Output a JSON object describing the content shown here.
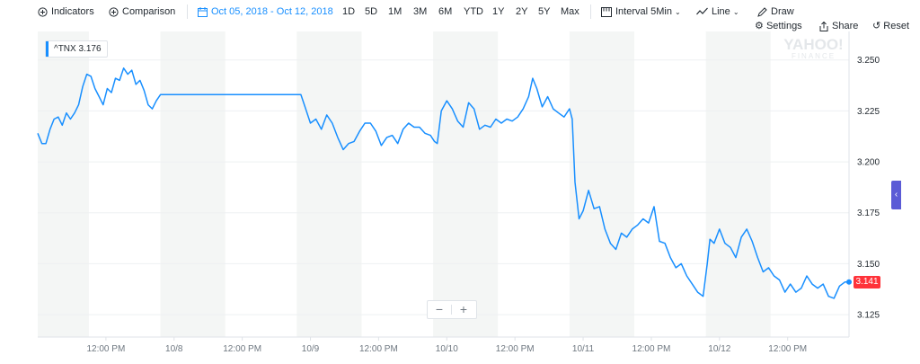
{
  "toolbar": {
    "indicators_label": "Indicators",
    "comparison_label": "Comparison",
    "date_range": "Oct 05, 2018 - Oct 12, 2018",
    "ranges": [
      "1D",
      "5D",
      "1M",
      "3M",
      "6M",
      "YTD",
      "1Y",
      "2Y",
      "5Y",
      "Max"
    ],
    "interval_label": "Interval",
    "interval_value": "5Min",
    "chart_type_label": "Line",
    "draw_label": "Draw",
    "settings_label": "Settings",
    "share_label": "Share",
    "reset_label": "Reset"
  },
  "watermark": {
    "line1": "YAHOO!",
    "line2": "FINANCE"
  },
  "legend": {
    "symbol": "^TNX",
    "value": "3.176"
  },
  "last_price_label": "3.141",
  "zoom": {
    "minus": "−",
    "plus": "+"
  },
  "side_tab_glyph": "‹",
  "colors": {
    "line": "#188fff",
    "shade": "#f4f6f5",
    "last_price_bg": "#ff333a",
    "accent": "#188fff",
    "side_tab": "#5b5bd6"
  },
  "chart_data": {
    "type": "line",
    "title": "",
    "xlabel": "",
    "ylabel": "",
    "ylim": [
      3.114,
      3.264
    ],
    "y_ticks": [
      3.125,
      3.15,
      3.175,
      3.2,
      3.225,
      3.25
    ],
    "y_tick_labels": [
      "3.125",
      "3.150",
      "3.175",
      "3.200",
      "3.225",
      "3.250"
    ],
    "x_range": [
      0,
      5.95
    ],
    "x_ticks": [
      0.5,
      1,
      1.5,
      2,
      2.5,
      3,
      3.5,
      4,
      4.5,
      5,
      5.5
    ],
    "x_tick_labels": [
      "12:00 PM",
      "10/8",
      "12:00 PM",
      "10/9",
      "12:00 PM",
      "10/10",
      "12:00 PM",
      "10/11",
      "12:00 PM",
      "10/12",
      "12:00 PM"
    ],
    "session_shading": [
      [
        0,
        0.375
      ],
      [
        0.9,
        1.375
      ],
      [
        1.9,
        2.375
      ],
      [
        2.9,
        3.375
      ],
      [
        3.9,
        4.375
      ],
      [
        4.9,
        5.375
      ]
    ],
    "series": [
      {
        "name": "^TNX",
        "x": [
          0.0,
          0.03,
          0.06,
          0.09,
          0.12,
          0.15,
          0.18,
          0.21,
          0.24,
          0.27,
          0.3,
          0.33,
          0.36,
          0.39,
          0.42,
          0.45,
          0.48,
          0.51,
          0.54,
          0.57,
          0.6,
          0.63,
          0.66,
          0.69,
          0.72,
          0.75,
          0.78,
          0.81,
          0.84,
          0.87,
          0.9,
          0.93,
          0.96,
          1.0,
          1.3,
          1.6,
          1.93,
          1.96,
          2.0,
          2.04,
          2.08,
          2.12,
          2.16,
          2.2,
          2.24,
          2.28,
          2.32,
          2.36,
          2.4,
          2.44,
          2.48,
          2.52,
          2.56,
          2.6,
          2.64,
          2.68,
          2.72,
          2.76,
          2.8,
          2.84,
          2.88,
          2.91,
          2.93,
          2.96,
          3.0,
          3.04,
          3.08,
          3.12,
          3.16,
          3.2,
          3.24,
          3.28,
          3.32,
          3.36,
          3.4,
          3.44,
          3.48,
          3.52,
          3.56,
          3.6,
          3.63,
          3.66,
          3.7,
          3.74,
          3.78,
          3.82,
          3.86,
          3.9,
          3.92,
          3.94,
          3.97,
          4.0,
          4.04,
          4.08,
          4.12,
          4.16,
          4.2,
          4.24,
          4.28,
          4.32,
          4.36,
          4.4,
          4.44,
          4.48,
          4.52,
          4.56,
          4.6,
          4.64,
          4.68,
          4.72,
          4.76,
          4.8,
          4.84,
          4.88,
          4.91,
          4.93,
          4.96,
          5.0,
          5.04,
          5.08,
          5.12,
          5.16,
          5.2,
          5.24,
          5.28,
          5.32,
          5.36,
          5.4,
          5.44,
          5.48,
          5.52,
          5.56,
          5.6,
          5.64,
          5.68,
          5.72,
          5.76,
          5.8,
          5.84,
          5.88,
          5.92,
          5.95
        ],
        "values": [
          3.214,
          3.209,
          3.209,
          3.216,
          3.221,
          3.222,
          3.218,
          3.224,
          3.221,
          3.224,
          3.228,
          3.237,
          3.243,
          3.242,
          3.236,
          3.232,
          3.228,
          3.236,
          3.234,
          3.241,
          3.24,
          3.246,
          3.243,
          3.245,
          3.238,
          3.24,
          3.235,
          3.228,
          3.226,
          3.23,
          3.233,
          3.233,
          3.233,
          3.233,
          3.233,
          3.233,
          3.233,
          3.227,
          3.219,
          3.221,
          3.216,
          3.223,
          3.219,
          3.212,
          3.206,
          3.209,
          3.21,
          3.215,
          3.219,
          3.219,
          3.215,
          3.208,
          3.212,
          3.213,
          3.209,
          3.216,
          3.219,
          3.217,
          3.217,
          3.214,
          3.213,
          3.21,
          3.209,
          3.225,
          3.23,
          3.226,
          3.22,
          3.217,
          3.229,
          3.226,
          3.216,
          3.218,
          3.217,
          3.221,
          3.219,
          3.221,
          3.22,
          3.222,
          3.226,
          3.232,
          3.241,
          3.236,
          3.227,
          3.232,
          3.226,
          3.224,
          3.222,
          3.226,
          3.221,
          3.19,
          3.172,
          3.176,
          3.186,
          3.177,
          3.178,
          3.167,
          3.16,
          3.157,
          3.165,
          3.163,
          3.167,
          3.169,
          3.172,
          3.17,
          3.178,
          3.161,
          3.16,
          3.153,
          3.148,
          3.15,
          3.144,
          3.14,
          3.136,
          3.134,
          3.15,
          3.162,
          3.16,
          3.167,
          3.16,
          3.158,
          3.153,
          3.163,
          3.167,
          3.161,
          3.153,
          3.146,
          3.148,
          3.144,
          3.142,
          3.136,
          3.14,
          3.136,
          3.138,
          3.144,
          3.14,
          3.138,
          3.14,
          3.134,
          3.133,
          3.139,
          3.141,
          3.141
        ]
      }
    ],
    "last_value": 3.141
  }
}
